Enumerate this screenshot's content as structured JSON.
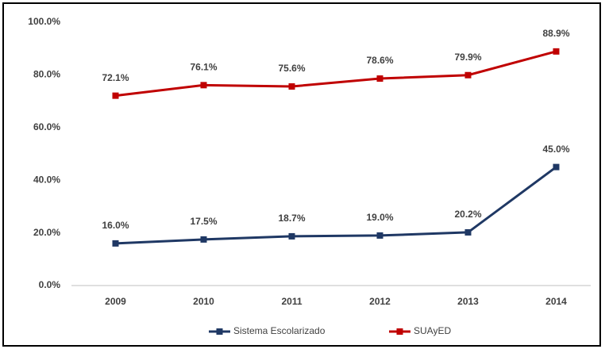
{
  "chart_data": {
    "type": "line",
    "categories": [
      "2009",
      "2010",
      "2011",
      "2012",
      "2013",
      "2014"
    ],
    "series": [
      {
        "name": "Sistema Escolarizado",
        "color": "#1f3864",
        "values": [
          16.0,
          17.5,
          18.7,
          19.0,
          20.2,
          45.0
        ],
        "value_labels": [
          "16.0%",
          "17.5%",
          "18.7%",
          "19.0%",
          "20.2%",
          "45.0%"
        ]
      },
      {
        "name": "SUAyED",
        "color": "#c00000",
        "values": [
          72.1,
          76.1,
          75.6,
          78.6,
          79.9,
          88.9
        ],
        "value_labels": [
          "72.1%",
          "76.1%",
          "75.6%",
          "78.6%",
          "79.9%",
          "88.9%"
        ]
      }
    ],
    "ylim": [
      0,
      100
    ],
    "yticks": [
      {
        "value": 0,
        "label": "0.0%"
      },
      {
        "value": 20,
        "label": "20.0%"
      },
      {
        "value": 40,
        "label": "40.0%"
      },
      {
        "value": 60,
        "label": "60.0%"
      },
      {
        "value": 80,
        "label": "80.0%"
      },
      {
        "value": 100,
        "label": "100.0%"
      }
    ],
    "grid": false,
    "legend": "bottom"
  }
}
